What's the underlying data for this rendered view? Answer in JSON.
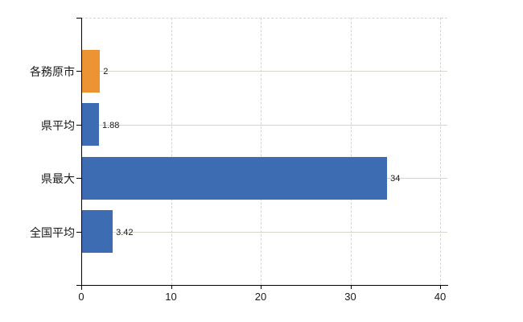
{
  "chart_data": {
    "type": "bar",
    "orientation": "horizontal",
    "title": "",
    "categories": [
      "各務原市",
      "県平均",
      "県最大",
      "全国平均"
    ],
    "values": [
      2,
      1.88,
      34,
      3.42
    ],
    "value_labels": [
      "2",
      "1.88",
      "34",
      "3.42"
    ],
    "series": [
      {
        "name": "highlight",
        "color": "#ec9434",
        "applies_to": [
          "各務原市"
        ]
      },
      {
        "name": "default",
        "color": "#3d6cb2",
        "applies_to": [
          "県平均",
          "県最大",
          "全国平均"
        ]
      }
    ],
    "bar_colors": [
      "#ec9434",
      "#3d6cb2",
      "#3d6cb2",
      "#3d6cb2"
    ],
    "xlim": [
      0,
      40
    ],
    "x_ticks": [
      0,
      10,
      20,
      30,
      40
    ],
    "x_tick_labels": [
      "0",
      "10",
      "20",
      "30",
      "40"
    ],
    "grid": true,
    "legend_position": "none"
  },
  "colors": {
    "background": "#ffffff",
    "axis": "#000000",
    "grid_horizontal": "#d2d7cc",
    "grid_vertical": "#d7d2d6",
    "text": "#1a1a1a",
    "bar_orange": "#ec9434",
    "bar_blue": "#3d6cb2"
  }
}
